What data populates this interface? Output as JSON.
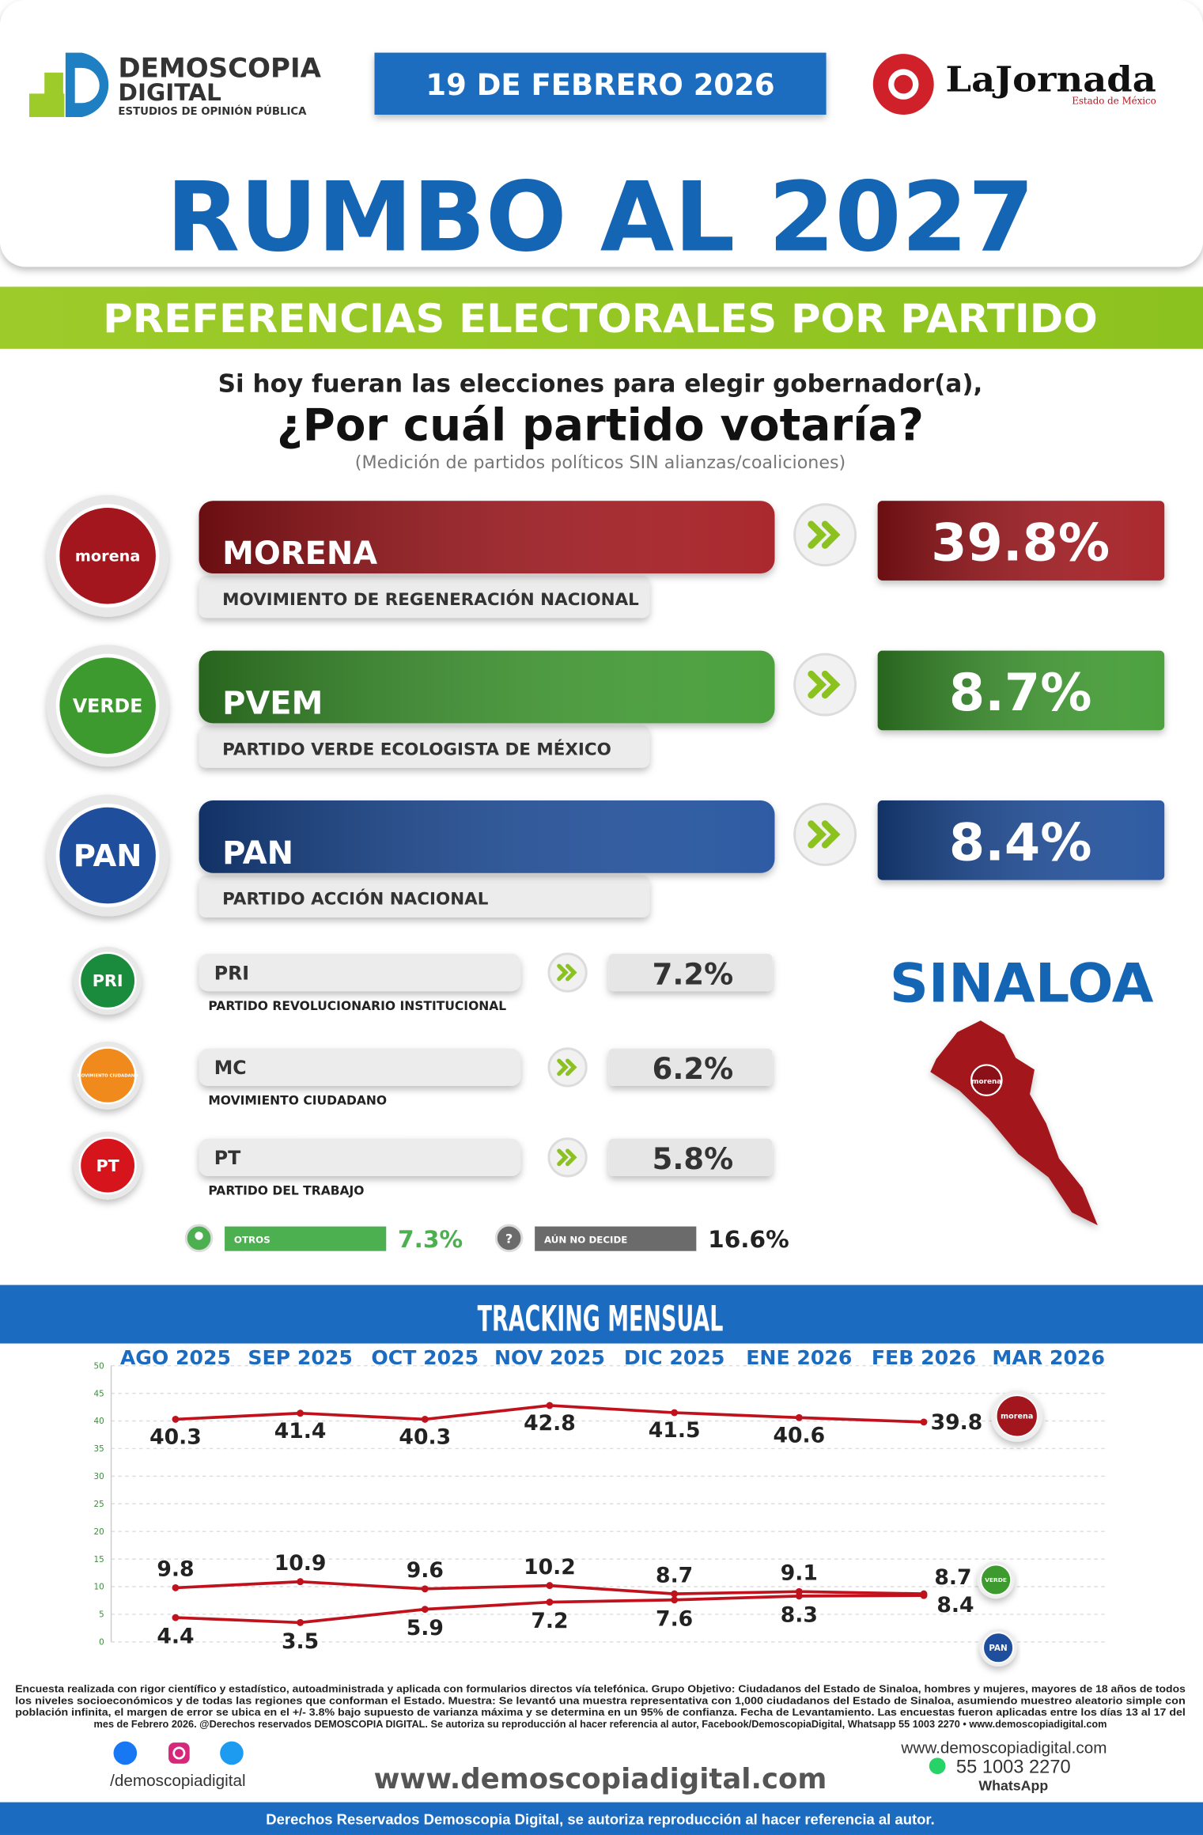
{
  "header": {
    "brand": "DEMOSCOPIA",
    "brand_2": "DIGITAL",
    "tagline": "ESTUDIOS DE OPINIÓN PÚBLICA",
    "date": "19 DE FEBRERO 2026",
    "partner": "LaJornada",
    "partner_edition": "Estado de México"
  },
  "title": "RUMBO AL 2027",
  "subtitle": "PREFERENCIAS ELECTORALES POR PARTIDO",
  "question": {
    "line_1": "Si hoy fueran las elecciones para elegir gobernador(a),",
    "line_2": "¿Por cuál partido votaría?",
    "note": "(Medición de partidos políticos SIN alianzas/coaliciones)"
  },
  "results": {
    "major": [
      {
        "logo": "morena",
        "name": "MORENA",
        "full": "MOVIMIENTO DE REGENERACIÓN NACIONAL",
        "value": "39.8%",
        "color": "#a3161e"
      },
      {
        "logo": "VERDE",
        "name": "PVEM",
        "full": "PARTIDO VERDE ECOLOGISTA DE MÉXICO",
        "value": "8.7%",
        "color": "#3d9a2f"
      },
      {
        "logo": "PAN",
        "name": "PAN",
        "full": "PARTIDO ACCIÓN NACIONAL",
        "value": "8.4%",
        "color": "#1f4e9c"
      }
    ],
    "minor": [
      {
        "logo": "PRI",
        "name": "PRI",
        "full": "PARTIDO REVOLUCIONARIO INSTITUCIONAL",
        "value": "7.2%",
        "color": "#1a8a3c"
      },
      {
        "logo": "MOVIMIENTO CIUDADANO",
        "name": "MC",
        "full": "MOVIMIENTO CIUDADANO",
        "value": "6.2%",
        "color": "#f08a1c"
      },
      {
        "logo": "PT",
        "name": "PT",
        "full": "PARTIDO DEL TRABAJO",
        "value": "5.8%",
        "color": "#d5141b"
      }
    ],
    "others": [
      {
        "label": "OTROS",
        "value": "7.3%",
        "color": "#4caf50"
      },
      {
        "label": "AÚN NO DECIDE",
        "value": "16.6%",
        "color": "#6b6b6b",
        "symbol": "?"
      }
    ]
  },
  "state": "SINALOA",
  "state_logo": "morena",
  "chart_data": {
    "type": "line",
    "title": "TRACKING MENSUAL",
    "categories": [
      "AGO 2025",
      "SEP 2025",
      "OCT 2025",
      "NOV 2025",
      "DIC 2025",
      "ENE 2026",
      "FEB 2026",
      "MAR 2026"
    ],
    "series": [
      {
        "name": "morena",
        "color": "#c0121c",
        "values": [
          40.3,
          41.4,
          40.3,
          42.8,
          41.5,
          40.6,
          39.8,
          null
        ]
      },
      {
        "name": "VERDE",
        "color": "#c0121c",
        "values": [
          9.8,
          10.9,
          9.6,
          10.2,
          8.7,
          9.1,
          8.7,
          null
        ]
      },
      {
        "name": "PAN",
        "color": "#c0121c",
        "values": [
          4.4,
          3.5,
          5.9,
          7.2,
          7.6,
          8.3,
          8.4,
          null
        ]
      }
    ],
    "ylim": [
      0,
      50
    ],
    "yticks": [
      0,
      5,
      10,
      15,
      20,
      25,
      30,
      35,
      40,
      45,
      50
    ],
    "grid": true
  },
  "footer": {
    "disclaimer": [
      "Encuesta realizada con rigor científico y estadístico, autoadministrada y aplicada con formularios directos vía telefónica. Grupo Objetivo: Ciudadanos del Estado de Sinaloa, hombres y mujeres, mayores de 18 años de todos",
      "los niveles socioeconómicos y de todas las regiones que conforman el Estado. Muestra: Se levantó una muestra representativa con 1,000 ciudadanos del Estado de Sinaloa, asumiendo muestreo aleatorio simple con",
      "población infinita, el margen de error se ubica en el +/- 3.8% bajo supuesto de varianza máxima y se determina en un 95% de confianza. Fecha de Levantamiento. Las encuestas fueron aplicadas entre los días 13 al 17 del",
      "mes de Febrero 2026. @Derechos reservados DEMOSCOPIA DIGITAL. Se autoriza su reproducción al hacer referencia al autor, Facebook/DemoscopiaDigital, Whatsapp 55 1003 2270 • www.demoscopiadigital.com"
    ],
    "handle": "/demoscopiadigital",
    "website": "www.demoscopiadigital.com",
    "contact_web": "www.demoscopiadigital.com",
    "phone": "55 1003 2270",
    "phone_app": "WhatsApp",
    "rights": "Derechos Reservados Demoscopia Digital, se autoriza reproducción al hacer referencia al autor."
  }
}
